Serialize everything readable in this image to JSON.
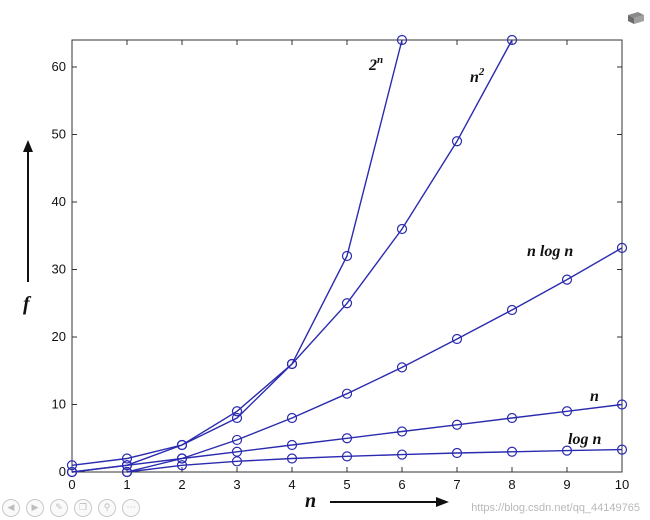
{
  "chart_data": {
    "type": "line",
    "xlabel": "n",
    "ylabel": "f",
    "xlim": [
      0,
      10
    ],
    "ylim": [
      0,
      64
    ],
    "xticks": [
      0,
      1,
      2,
      3,
      4,
      5,
      6,
      7,
      8,
      9,
      10
    ],
    "yticks": [
      0,
      10,
      20,
      30,
      40,
      50,
      60
    ],
    "grid": false,
    "marker": "circle",
    "line_color": "#2b2bb0",
    "series": [
      {
        "name": "log n",
        "x": [
          1,
          2,
          3,
          4,
          5,
          6,
          7,
          8,
          9,
          10
        ],
        "values": [
          0,
          1,
          1.58,
          2,
          2.32,
          2.58,
          2.81,
          3,
          3.17,
          3.32
        ]
      },
      {
        "name": "n",
        "x": [
          0,
          1,
          2,
          3,
          4,
          5,
          6,
          7,
          8,
          9,
          10
        ],
        "values": [
          0,
          1,
          2,
          3,
          4,
          5,
          6,
          7,
          8,
          9,
          10
        ]
      },
      {
        "name": "n log n",
        "x": [
          1,
          2,
          3,
          4,
          5,
          6,
          7,
          8,
          9,
          10
        ],
        "values": [
          0,
          2,
          4.75,
          8,
          11.6,
          15.5,
          19.7,
          24,
          28.5,
          33.2
        ]
      },
      {
        "name": "n²",
        "x": [
          0,
          1,
          2,
          3,
          4,
          5,
          6,
          7,
          8
        ],
        "values": [
          0,
          1,
          4,
          9,
          16,
          25,
          36,
          49,
          64
        ]
      },
      {
        "name": "2ⁿ",
        "x": [
          0,
          1,
          2,
          3,
          4,
          5,
          6
        ],
        "values": [
          1,
          2,
          4,
          8,
          16,
          32,
          64
        ]
      }
    ]
  },
  "labels": {
    "series_2n_base": "2",
    "series_2n_sup": "n",
    "series_n2_base": "n",
    "series_n2_sup": "2",
    "series_nlogn": "n log n",
    "series_n": "n",
    "series_logn": "log n",
    "x_axis_letter": "n",
    "y_axis_letter": "f"
  },
  "watermark": "https://blog.csdn.net/qq_44149765",
  "icons": [
    "slide-icon",
    "prev-icon",
    "play-icon",
    "pen-icon",
    "copy-icon",
    "zoom-icon",
    "more-icon"
  ]
}
